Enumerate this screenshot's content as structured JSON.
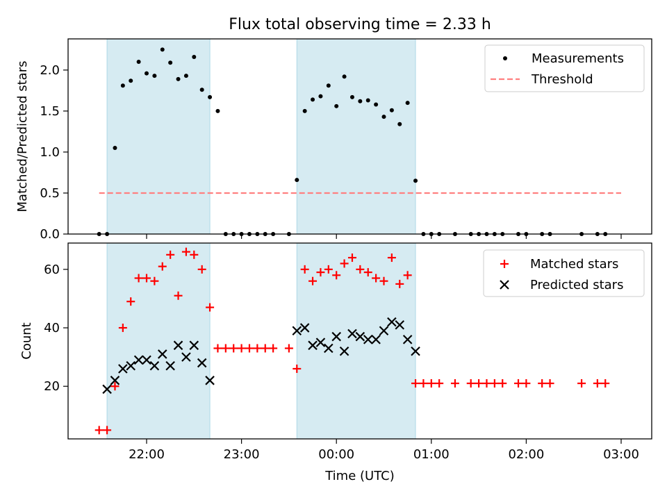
{
  "title": "Flux total observing time = 2.33 h",
  "x_tick_labels": [
    "22:00",
    "23:00",
    "00:00",
    "01:00",
    "02:00",
    "03:00"
  ],
  "chart_data": [
    {
      "type": "scatter",
      "ylabel": "Matched/Predicted stars",
      "ylim": [
        0,
        2.38
      ],
      "yticks": [
        "0.0",
        "0.5",
        "1.0",
        "1.5",
        "2.0"
      ],
      "ytick_values": [
        0,
        0.5,
        1.0,
        1.5,
        2.0
      ],
      "shaded_intervals": [
        [
          "21:35",
          "22:40"
        ],
        [
          "23:35",
          "00:50"
        ]
      ],
      "legend": {
        "position": "upper right",
        "measurements": "Measurements",
        "threshold": "Threshold"
      },
      "threshold": {
        "y": 0.5,
        "x_start": "21:30",
        "x_end": "03:00"
      },
      "series": [
        {
          "name": "Measurements",
          "x": [
            "21:30",
            "21:35",
            "21:40",
            "21:45",
            "21:50",
            "21:55",
            "22:00",
            "22:05",
            "22:10",
            "22:15",
            "22:20",
            "22:25",
            "22:30",
            "22:35",
            "22:40",
            "22:45",
            "22:50",
            "22:55",
            "23:00",
            "23:05",
            "23:10",
            "23:15",
            "23:20",
            "23:30",
            "23:35",
            "23:40",
            "23:45",
            "23:50",
            "23:55",
            "00:00",
            "00:05",
            "00:10",
            "00:15",
            "00:20",
            "00:25",
            "00:30",
            "00:35",
            "00:40",
            "00:45",
            "00:50",
            "00:55",
            "01:00",
            "01:05",
            "01:15",
            "01:25",
            "01:30",
            "01:35",
            "01:40",
            "01:45",
            "01:55",
            "02:00",
            "02:10",
            "02:15",
            "02:35",
            "02:45",
            "02:50"
          ],
          "y": [
            0,
            0,
            1.05,
            1.81,
            1.87,
            2.1,
            1.96,
            1.93,
            2.25,
            2.09,
            1.89,
            1.93,
            2.16,
            1.76,
            1.67,
            1.5,
            0,
            0,
            0,
            0,
            0,
            0,
            0,
            0,
            0.66,
            1.5,
            1.64,
            1.68,
            1.81,
            1.56,
            1.92,
            1.67,
            1.62,
            1.63,
            1.58,
            1.43,
            1.51,
            1.34,
            1.6,
            0.65,
            0,
            0,
            0,
            0,
            0,
            0,
            0,
            0,
            0,
            0,
            0,
            0,
            0,
            0,
            0,
            0
          ]
        }
      ]
    },
    {
      "type": "scatter",
      "xlabel": "Time (UTC)",
      "ylabel": "Count",
      "ylim": [
        2,
        69
      ],
      "yticks": [
        "20",
        "40",
        "60"
      ],
      "ytick_values": [
        20,
        40,
        60
      ],
      "shaded_intervals": [
        [
          "21:35",
          "22:40"
        ],
        [
          "23:35",
          "00:50"
        ]
      ],
      "legend": {
        "position": "upper right",
        "matched": "Matched stars",
        "predicted": "Predicted stars"
      },
      "series": [
        {
          "name": "Matched stars",
          "x": [
            "21:30",
            "21:35",
            "21:40",
            "21:45",
            "21:50",
            "21:55",
            "22:00",
            "22:05",
            "22:10",
            "22:15",
            "22:20",
            "22:25",
            "22:30",
            "22:35",
            "22:40",
            "22:45",
            "22:50",
            "22:55",
            "23:00",
            "23:05",
            "23:10",
            "23:15",
            "23:20",
            "23:30",
            "23:35",
            "23:40",
            "23:45",
            "23:50",
            "23:55",
            "00:00",
            "00:05",
            "00:10",
            "00:15",
            "00:20",
            "00:25",
            "00:30",
            "00:35",
            "00:40",
            "00:45",
            "00:50",
            "00:55",
            "01:00",
            "01:05",
            "01:15",
            "01:25",
            "01:30",
            "01:35",
            "01:40",
            "01:45",
            "01:55",
            "02:00",
            "02:10",
            "02:15",
            "02:35",
            "02:45",
            "02:50"
          ],
          "y": [
            5,
            5,
            20,
            40,
            49,
            57,
            57,
            56,
            61,
            65,
            51,
            66,
            65,
            60,
            47,
            33,
            33,
            33,
            33,
            33,
            33,
            33,
            33,
            33,
            26,
            60,
            56,
            59,
            60,
            58,
            62,
            64,
            60,
            59,
            57,
            56,
            64,
            55,
            58,
            21,
            21,
            21,
            21,
            21,
            21,
            21,
            21,
            21,
            21,
            21,
            21,
            21,
            21,
            21,
            21,
            21
          ]
        },
        {
          "name": "Predicted stars",
          "x": [
            "21:35",
            "21:40",
            "21:45",
            "21:50",
            "21:55",
            "22:00",
            "22:05",
            "22:10",
            "22:15",
            "22:20",
            "22:25",
            "22:30",
            "22:35",
            "22:40",
            "23:35",
            "23:40",
            "23:45",
            "23:50",
            "23:55",
            "00:00",
            "00:05",
            "00:10",
            "00:15",
            "00:20",
            "00:25",
            "00:30",
            "00:35",
            "00:40",
            "00:45",
            "00:50"
          ],
          "y": [
            19,
            22,
            26,
            27,
            29,
            29,
            27,
            31,
            27,
            34,
            30,
            34,
            28,
            22,
            39,
            40,
            34,
            35,
            33,
            37,
            32,
            38,
            37,
            36,
            36,
            39,
            42,
            41,
            36,
            32
          ]
        }
      ]
    }
  ]
}
